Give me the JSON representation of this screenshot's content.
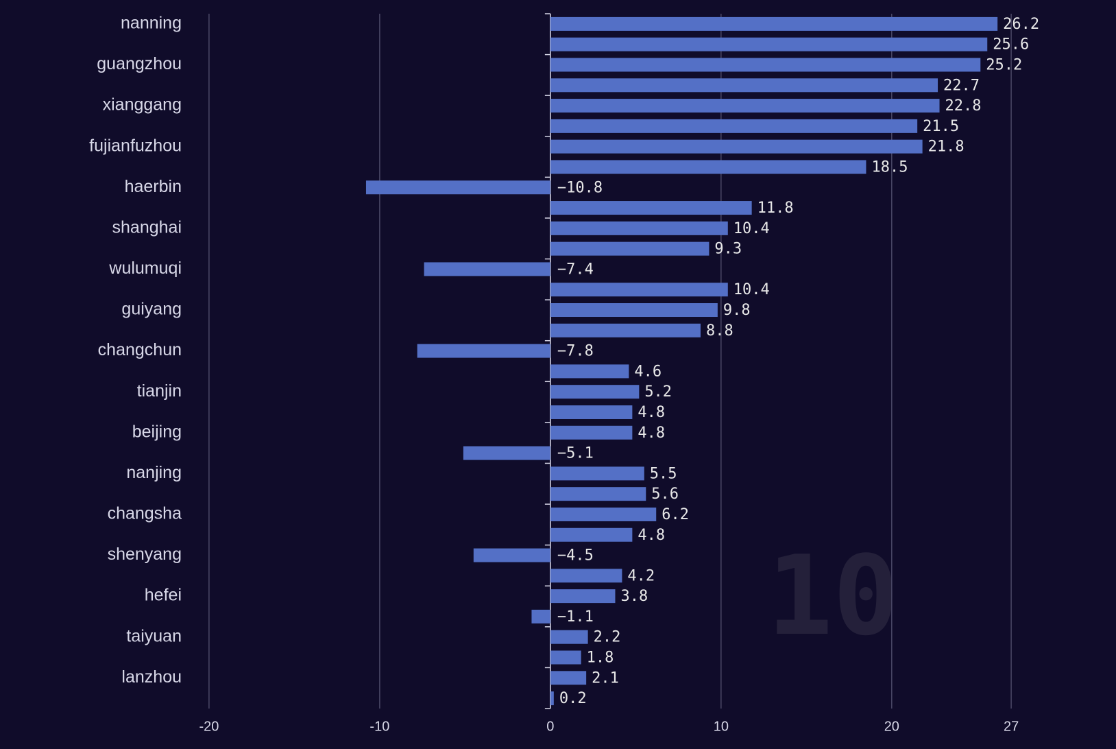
{
  "chart_data": {
    "type": "bar",
    "orientation": "horizontal",
    "frame_label": "10",
    "categories": [
      "nanning",
      null,
      "guangzhou",
      null,
      "xianggang",
      null,
      "fujianfuzhou",
      null,
      "haerbin",
      null,
      "shanghai",
      null,
      "wulumuqi",
      null,
      "guiyang",
      null,
      "changchun",
      null,
      "tianjin",
      null,
      "beijing",
      null,
      "nanjing",
      null,
      "changsha",
      null,
      "shenyang",
      null,
      "hefei",
      null,
      "taiyuan",
      null,
      "lanzhou",
      null
    ],
    "values": [
      26.2,
      25.6,
      25.2,
      22.7,
      22.8,
      21.5,
      21.8,
      18.5,
      -10.8,
      11.8,
      10.4,
      9.3,
      -7.4,
      10.4,
      9.8,
      8.8,
      -7.8,
      4.6,
      5.2,
      4.8,
      4.8,
      -5.1,
      5.5,
      5.6,
      6.2,
      4.8,
      -4.5,
      4.2,
      3.8,
      -1.1,
      2.2,
      1.8,
      2.1,
      0.2
    ],
    "value_labels": [
      "26.2",
      "25.6",
      "25.2",
      "22.7",
      "22.8",
      "21.5",
      "21.8",
      "18.5",
      "−10.8",
      "11.8",
      "10.4",
      "9.3",
      "−7.4",
      "10.4",
      "9.8",
      "8.8",
      "−7.8",
      "4.6",
      "5.2",
      "4.8",
      "4.8",
      "−5.1",
      "5.5",
      "5.6",
      "6.2",
      "4.8",
      "−4.5",
      "4.2",
      "3.8",
      "−1.1",
      "2.2",
      "1.8",
      "2.1",
      "0.2"
    ],
    "color": "#5470c6",
    "xlim": [
      -21,
      28
    ],
    "xticks": [
      -20,
      -10,
      0,
      10,
      20,
      27
    ],
    "grid": true
  }
}
